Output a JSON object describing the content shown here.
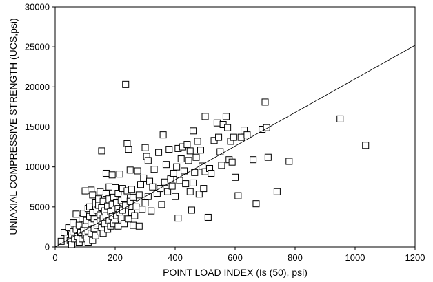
{
  "chart_data": {
    "type": "scatter",
    "xlabel": "POINT LOAD INDEX (Is (50), psi)",
    "ylabel": "UNIAXIAL COMPRESSIVE STRENGTH (UCS,psi)",
    "xlim": [
      0,
      1200
    ],
    "ylim": [
      0,
      30000
    ],
    "x_ticks": [
      0,
      200,
      400,
      600,
      800,
      1000,
      1200
    ],
    "y_ticks": [
      0,
      5000,
      10000,
      15000,
      20000,
      25000,
      30000
    ],
    "grid": false,
    "legend": "none",
    "trendline": {
      "x": [
        0,
        1200
      ],
      "y": [
        0,
        25200
      ]
    },
    "points": [
      [
        20,
        700
      ],
      [
        30,
        1800
      ],
      [
        40,
        1100
      ],
      [
        45,
        2400
      ],
      [
        50,
        800
      ],
      [
        55,
        1500
      ],
      [
        55,
        300
      ],
      [
        60,
        1900
      ],
      [
        60,
        3000
      ],
      [
        65,
        1000
      ],
      [
        70,
        4100
      ],
      [
        70,
        2200
      ],
      [
        75,
        1300
      ],
      [
        80,
        600
      ],
      [
        80,
        2700
      ],
      [
        85,
        1800
      ],
      [
        90,
        3500
      ],
      [
        90,
        1000
      ],
      [
        95,
        2100
      ],
      [
        95,
        4200
      ],
      [
        100,
        1500
      ],
      [
        100,
        2800
      ],
      [
        100,
        7000
      ],
      [
        105,
        3300
      ],
      [
        105,
        1100
      ],
      [
        110,
        4800
      ],
      [
        110,
        2000
      ],
      [
        110,
        600
      ],
      [
        115,
        3800
      ],
      [
        115,
        5000
      ],
      [
        120,
        1700
      ],
      [
        120,
        2900
      ],
      [
        120,
        7100
      ],
      [
        125,
        4300
      ],
      [
        125,
        800
      ],
      [
        125,
        6500
      ],
      [
        130,
        2300
      ],
      [
        130,
        3500
      ],
      [
        135,
        5500
      ],
      [
        135,
        1400
      ],
      [
        140,
        2700
      ],
      [
        140,
        4600
      ],
      [
        140,
        3000
      ],
      [
        145,
        5200
      ],
      [
        145,
        6000
      ],
      [
        150,
        1900
      ],
      [
        150,
        3300
      ],
      [
        150,
        4000
      ],
      [
        150,
        6900
      ],
      [
        155,
        2400
      ],
      [
        155,
        4900
      ],
      [
        155,
        12000
      ],
      [
        160,
        3600
      ],
      [
        160,
        5700
      ],
      [
        160,
        1700
      ],
      [
        165,
        2900
      ],
      [
        165,
        4500
      ],
      [
        170,
        6700
      ],
      [
        170,
        3900
      ],
      [
        170,
        9200
      ],
      [
        175,
        2200
      ],
      [
        175,
        5100
      ],
      [
        180,
        3300
      ],
      [
        180,
        6000
      ],
      [
        180,
        7500
      ],
      [
        185,
        4400
      ],
      [
        185,
        2600
      ],
      [
        190,
        5300
      ],
      [
        190,
        3800
      ],
      [
        190,
        9000
      ],
      [
        195,
        6200
      ],
      [
        195,
        2900
      ],
      [
        200,
        4700
      ],
      [
        200,
        3400
      ],
      [
        200,
        7400
      ],
      [
        205,
        5500
      ],
      [
        205,
        3900
      ],
      [
        210,
        6700
      ],
      [
        210,
        2600
      ],
      [
        210,
        4800
      ],
      [
        215,
        9100
      ],
      [
        215,
        4300
      ],
      [
        220,
        3600
      ],
      [
        220,
        5800
      ],
      [
        225,
        7300
      ],
      [
        225,
        4600
      ],
      [
        230,
        2900
      ],
      [
        230,
        6100
      ],
      [
        235,
        20300
      ],
      [
        235,
        5200
      ],
      [
        240,
        12900
      ],
      [
        240,
        7000
      ],
      [
        245,
        12200
      ],
      [
        245,
        3500
      ],
      [
        250,
        9600
      ],
      [
        250,
        5700
      ],
      [
        255,
        4300
      ],
      [
        255,
        7200
      ],
      [
        260,
        2700
      ],
      [
        260,
        6200
      ],
      [
        265,
        3900
      ],
      [
        270,
        5000
      ],
      [
        275,
        9500
      ],
      [
        280,
        6500
      ],
      [
        280,
        2600
      ],
      [
        285,
        7800
      ],
      [
        290,
        4700
      ],
      [
        295,
        8600
      ],
      [
        300,
        5500
      ],
      [
        300,
        12400
      ],
      [
        305,
        11300
      ],
      [
        310,
        10800
      ],
      [
        310,
        6300
      ],
      [
        315,
        8200
      ],
      [
        320,
        4500
      ],
      [
        325,
        7500
      ],
      [
        330,
        9700
      ],
      [
        340,
        6700
      ],
      [
        345,
        11800
      ],
      [
        350,
        7300
      ],
      [
        355,
        5300
      ],
      [
        360,
        14000
      ],
      [
        365,
        8100
      ],
      [
        370,
        10300
      ],
      [
        375,
        6900
      ],
      [
        380,
        12200
      ],
      [
        385,
        8500
      ],
      [
        390,
        7600
      ],
      [
        395,
        9200
      ],
      [
        400,
        6300
      ],
      [
        405,
        10000
      ],
      [
        410,
        3600
      ],
      [
        410,
        12300
      ],
      [
        415,
        8300
      ],
      [
        420,
        11000
      ],
      [
        425,
        12500
      ],
      [
        430,
        9500
      ],
      [
        435,
        7900
      ],
      [
        440,
        12800
      ],
      [
        445,
        10800
      ],
      [
        450,
        6900
      ],
      [
        450,
        12000
      ],
      [
        455,
        4600
      ],
      [
        460,
        14500
      ],
      [
        460,
        8000
      ],
      [
        465,
        9300
      ],
      [
        470,
        11200
      ],
      [
        475,
        13200
      ],
      [
        480,
        6600
      ],
      [
        485,
        12100
      ],
      [
        490,
        10100
      ],
      [
        495,
        7300
      ],
      [
        500,
        16300
      ],
      [
        500,
        9400
      ],
      [
        510,
        3700
      ],
      [
        515,
        9800
      ],
      [
        520,
        9200
      ],
      [
        530,
        13300
      ],
      [
        540,
        15500
      ],
      [
        545,
        13700
      ],
      [
        550,
        11900
      ],
      [
        555,
        10200
      ],
      [
        560,
        15300
      ],
      [
        570,
        16300
      ],
      [
        575,
        14900
      ],
      [
        580,
        10900
      ],
      [
        585,
        13200
      ],
      [
        590,
        10600
      ],
      [
        595,
        13700
      ],
      [
        600,
        8700
      ],
      [
        610,
        6400
      ],
      [
        620,
        13700
      ],
      [
        630,
        14600
      ],
      [
        640,
        14000
      ],
      [
        660,
        10900
      ],
      [
        670,
        5400
      ],
      [
        690,
        14700
      ],
      [
        700,
        18100
      ],
      [
        705,
        14900
      ],
      [
        710,
        11200
      ],
      [
        740,
        6900
      ],
      [
        780,
        10700
      ],
      [
        950,
        16000
      ],
      [
        1035,
        12700
      ]
    ]
  }
}
